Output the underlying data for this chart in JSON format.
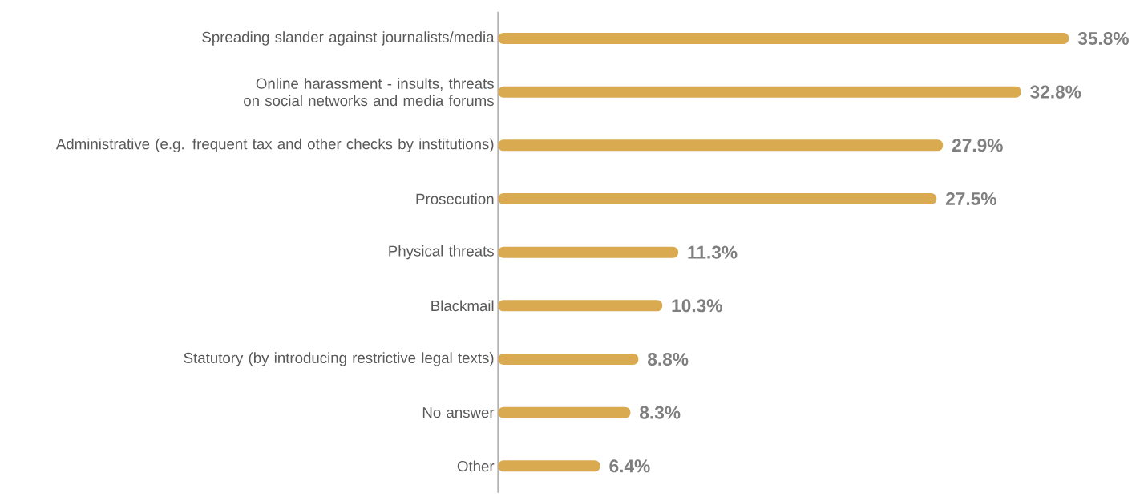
{
  "chart_data": {
    "type": "bar",
    "orientation": "horizontal",
    "categories": [
      "Spreading slander against journalists/media",
      "Online harassment - insults, threats on social networks and media forums",
      "Administrative (e.g. frequent tax and other checks by institutions)",
      "Prosecution",
      "Physical threats",
      "Blackmail",
      "Statutory (by introducing restrictive legal texts)",
      "No answer",
      "Other"
    ],
    "values": [
      35.8,
      32.8,
      27.9,
      27.5,
      11.3,
      10.3,
      8.8,
      8.3,
      6.4
    ],
    "value_labels": [
      "35.8%",
      "32.8%",
      "27.9%",
      "27.5%",
      "11.3%",
      "10.3%",
      "8.8%",
      "8.3%",
      "6.4%"
    ],
    "color": "#d9aa4f",
    "tick_labels": "y"
  }
}
